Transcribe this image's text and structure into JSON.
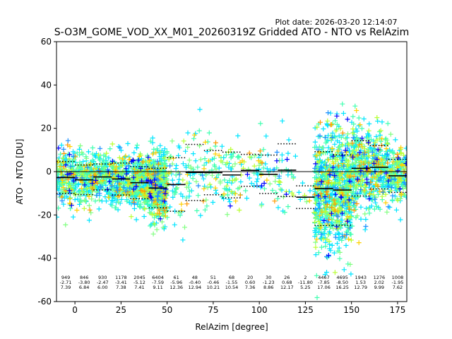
{
  "chart_data": {
    "type": "scatter",
    "title": "S-O3M_GOME_VOD_XX_M01_20260319Z Gridded ATO - NTO vs RelAzim",
    "plot_date": "Plot date: 2026-03-20 12:14:07",
    "xlabel": "RelAzim [degree]",
    "ylabel": "ATO - NTO [DU]",
    "xlim": [
      -10,
      180
    ],
    "ylim": [
      -60,
      60
    ],
    "xticks": [
      0,
      25,
      50,
      75,
      100,
      125,
      150,
      175
    ],
    "yticks": [
      -60,
      -40,
      -20,
      0,
      20,
      40,
      60
    ],
    "zero_line": 0,
    "bin_width": 10,
    "bins": [
      {
        "x": -5,
        "n": "949",
        "mean": "-2.71",
        "std": "7.39"
      },
      {
        "x": 5,
        "n": "846",
        "mean": "-3.80",
        "std": "6.84"
      },
      {
        "x": 15,
        "n": "930",
        "mean": "-2.47",
        "std": "6.00"
      },
      {
        "x": 25,
        "n": "1178",
        "mean": "-3.41",
        "std": "7.38"
      },
      {
        "x": 35,
        "n": "2045",
        "mean": "-5.12",
        "std": "7.41"
      },
      {
        "x": 45,
        "n": "6404",
        "mean": "-7.59",
        "std": "9.11"
      },
      {
        "x": 55,
        "n": "61",
        "mean": "-5.96",
        "std": "12.36"
      },
      {
        "x": 65,
        "n": "48",
        "mean": "-0.40",
        "std": "12.94"
      },
      {
        "x": 75,
        "n": "51",
        "mean": "-0.46",
        "std": "10.21"
      },
      {
        "x": 85,
        "n": "68",
        "mean": "-1.55",
        "std": "10.54"
      },
      {
        "x": 95,
        "n": "20",
        "mean": "0.60",
        "std": "7.36"
      },
      {
        "x": 105,
        "n": "30",
        "mean": "-1.23",
        "std": "8.86"
      },
      {
        "x": 115,
        "n": "26",
        "mean": "0.68",
        "std": "12.17"
      },
      {
        "x": 125,
        "n": "2",
        "mean": "-11.80",
        "std": "5.25"
      },
      {
        "x": 135,
        "n": "4467",
        "mean": "-7.85",
        "std": "17.06"
      },
      {
        "x": 145,
        "n": "4695",
        "mean": "-8.50",
        "std": "16.25"
      },
      {
        "x": 155,
        "n": "1943",
        "mean": "1.53",
        "std": "12.79"
      },
      {
        "x": 165,
        "n": "1276",
        "mean": "2.02",
        "std": "9.99"
      },
      {
        "x": 175,
        "n": "1008",
        "mean": "-1.95",
        "std": "7.62"
      }
    ],
    "colors": {
      "points": [
        "#00e5ff",
        "#40ffb0",
        "#80ff80",
        "#b8ff30",
        "#ffd000",
        "#ff9800",
        "#1e90ff",
        "#0000ff"
      ],
      "mean_line": "#000000",
      "std_line": "#000000",
      "zero_line": "#000000"
    }
  }
}
